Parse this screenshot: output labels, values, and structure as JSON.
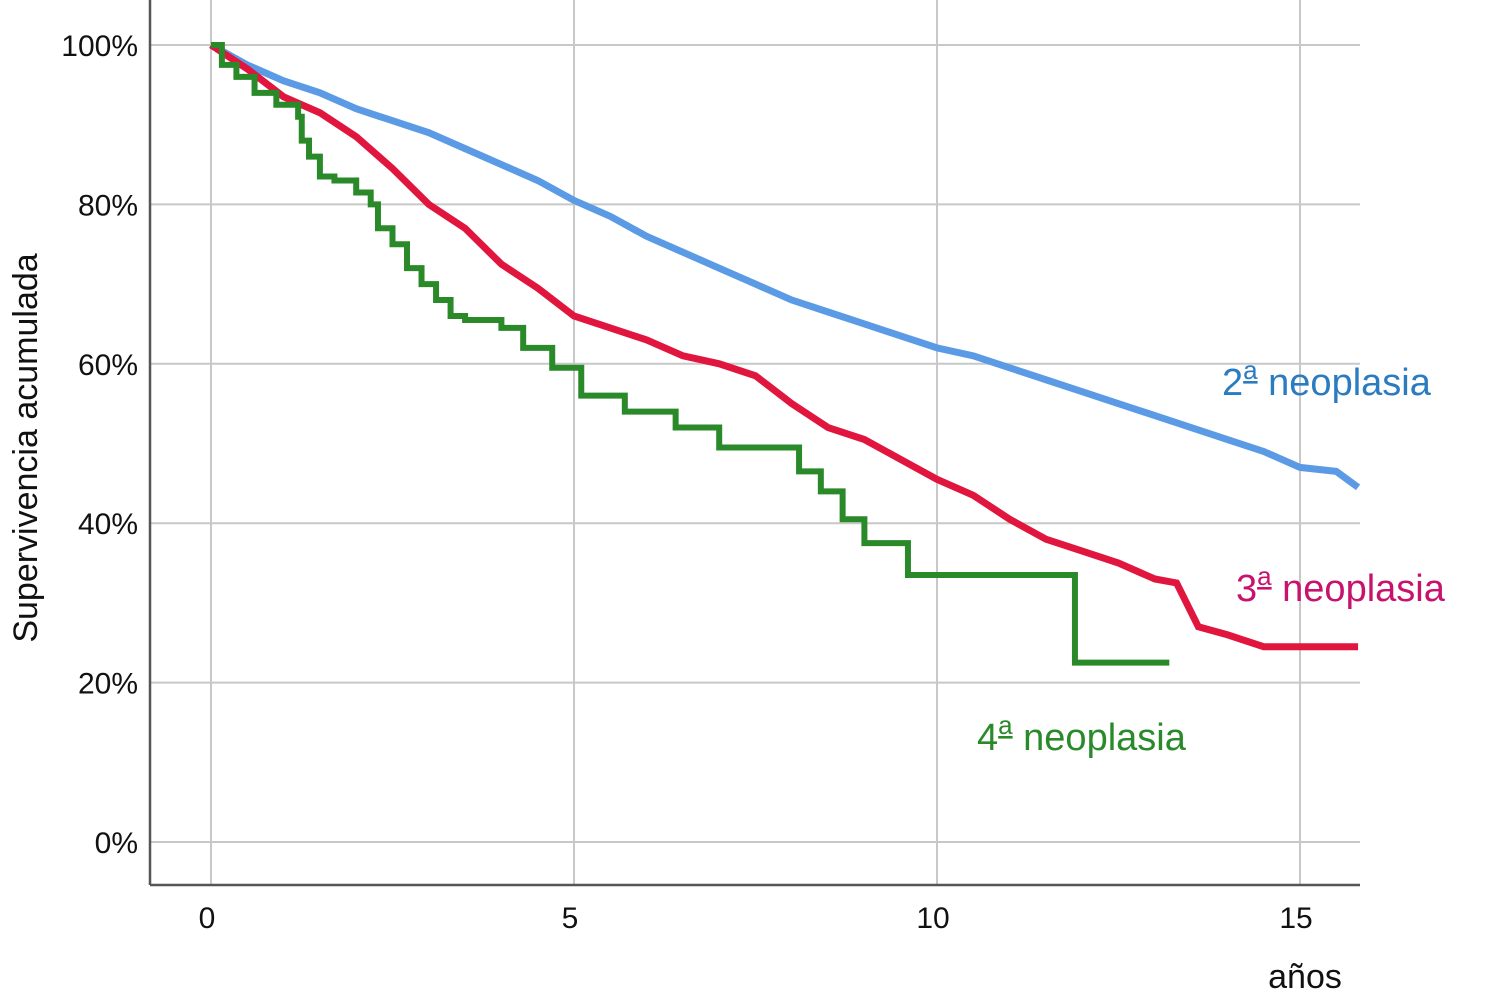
{
  "chart_data": {
    "type": "line",
    "title": "",
    "xlabel": "años",
    "ylabel": "Supervivencia acumulada",
    "xlim": [
      -0.8,
      15.8
    ],
    "ylim": [
      -5,
      105
    ],
    "x_ticks": [
      0,
      5,
      10,
      15
    ],
    "x_tick_labels": [
      "0",
      "5",
      "10",
      "15"
    ],
    "y_ticks": [
      0,
      20,
      40,
      60,
      80,
      100
    ],
    "y_tick_labels": [
      "0%",
      "20%",
      "40%",
      "60%",
      "80%",
      "100%"
    ],
    "grid": true,
    "series": [
      {
        "name": "2ª neoplasia",
        "label_base": "2",
        "label_sup": "a",
        "label_rest": "neoplasia",
        "color": "#5b9be6",
        "label_color": "#2a7bc0",
        "x": [
          0,
          0.5,
          1,
          1.5,
          2,
          2.5,
          3,
          3.5,
          4,
          4.5,
          5,
          5.5,
          6,
          6.5,
          7,
          7.5,
          8,
          8.5,
          9,
          9.5,
          10,
          10.5,
          11,
          11.5,
          12,
          12.5,
          13,
          13.5,
          14,
          14.5,
          15,
          15.5,
          15.8
        ],
        "y": [
          100,
          97.5,
          95.5,
          94,
          92,
          90.5,
          89,
          87,
          85,
          83,
          80.5,
          78.5,
          76,
          74,
          72,
          70,
          68,
          66.5,
          65,
          63.5,
          62,
          61,
          59.5,
          58,
          56.5,
          55,
          53.5,
          52,
          50.5,
          49,
          47,
          46.5,
          44.5
        ]
      },
      {
        "name": "3ª neoplasia",
        "label_base": "3",
        "label_sup": "a",
        "label_rest": "neoplasia",
        "color": "#e0163e",
        "label_color": "#c7136d",
        "x": [
          0,
          0.5,
          1,
          1.5,
          2,
          2.5,
          3,
          3.5,
          4,
          4.5,
          5,
          5.5,
          6,
          6.5,
          7,
          7.5,
          8,
          8.5,
          9,
          9.5,
          10,
          10.5,
          11,
          11.5,
          12,
          12.5,
          13,
          13.3,
          13.6,
          14,
          14.5,
          15,
          15.8
        ],
        "y": [
          100,
          97,
          93.5,
          91.5,
          88.5,
          84.5,
          80,
          77,
          72.5,
          69.5,
          66,
          64.5,
          63,
          61,
          60,
          58.5,
          55,
          52,
          50.5,
          48,
          45.5,
          43.5,
          40.5,
          38,
          36.5,
          35,
          33,
          32.5,
          27,
          26,
          24.5,
          24.5,
          24.5
        ]
      },
      {
        "name": "4ª neoplasia",
        "label_base": "4",
        "label_sup": "a",
        "label_rest": "neoplasia",
        "color": "#2a8a2a",
        "label_color": "#2a8a2a",
        "step": true,
        "x": [
          0,
          0.15,
          0.35,
          0.6,
          0.9,
          1.2,
          1.25,
          1.35,
          1.5,
          1.7,
          2.0,
          2.2,
          2.3,
          2.5,
          2.7,
          2.9,
          3.1,
          3.3,
          3.5,
          4.0,
          4.3,
          4.7,
          5.1,
          5.7,
          6.4,
          7.0,
          7.9,
          8.1,
          8.4,
          8.7,
          9.0,
          9.6,
          10.5,
          11.3,
          11.9,
          13.2
        ],
        "y": [
          100,
          97.5,
          96,
          94,
          92.5,
          91,
          88,
          86,
          83.5,
          83,
          81.5,
          80,
          77,
          75,
          72,
          70,
          68,
          66,
          65.5,
          64.5,
          62,
          59.5,
          56,
          54,
          52,
          49.5,
          49.5,
          46.5,
          44,
          40.5,
          37.5,
          33.5,
          33.5,
          33.5,
          22.5,
          22.5
        ]
      }
    ]
  }
}
